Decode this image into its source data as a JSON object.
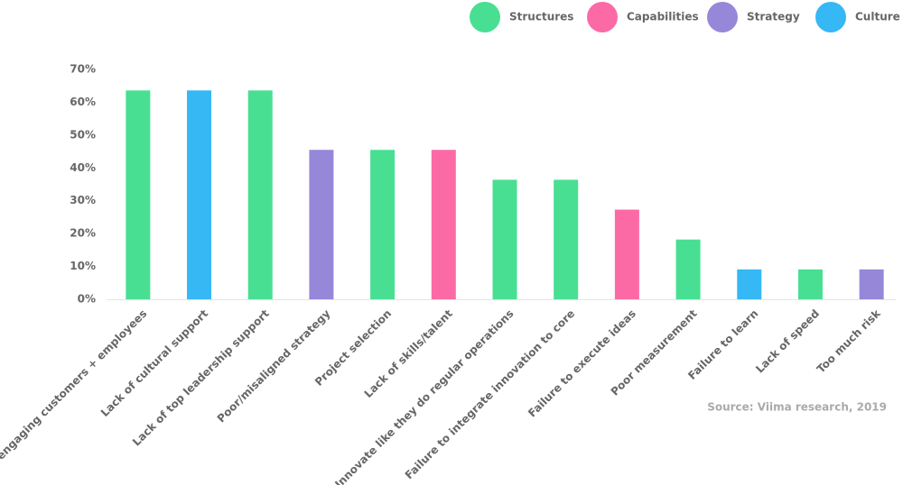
{
  "chart_data": {
    "type": "bar",
    "categories": [
      "Not engaging customers + employees",
      "Lack of cultural support",
      "Lack of top leadership support",
      "Poor/misaligned strategy",
      "Project selection",
      "Lack of skills/talent",
      "Innovate like they do regular operations",
      "Failure to integrate innovation to core",
      "Failure to execute ideas",
      "Poor measurement",
      "Failure to learn",
      "Lack of speed",
      "Too much risk"
    ],
    "series": [
      {
        "name": "Structures",
        "color": "#48df93",
        "values": [
          63.6,
          null,
          63.6,
          null,
          45.5,
          null,
          36.4,
          36.4,
          null,
          18.2,
          null,
          9.1,
          null
        ]
      },
      {
        "name": "Capabilities",
        "color": "#fc6aa5",
        "values": [
          null,
          null,
          null,
          null,
          null,
          45.5,
          null,
          null,
          27.3,
          null,
          null,
          null,
          null
        ]
      },
      {
        "name": "Strategy",
        "color": "#9687d9",
        "values": [
          null,
          null,
          null,
          45.5,
          null,
          null,
          null,
          null,
          null,
          null,
          null,
          null,
          9.1
        ]
      },
      {
        "name": "Culture",
        "color": "#35b8f4",
        "values": [
          null,
          63.6,
          null,
          null,
          null,
          null,
          null,
          null,
          null,
          null,
          9.1,
          null,
          null
        ]
      }
    ],
    "ylim": [
      0,
      70
    ],
    "yticks": [
      {
        "value": 0,
        "label": "0%"
      },
      {
        "value": 10,
        "label": "10%"
      },
      {
        "value": 20,
        "label": "20%"
      },
      {
        "value": 30,
        "label": "30%"
      },
      {
        "value": 40,
        "label": "40%"
      },
      {
        "value": 50,
        "label": "50%"
      },
      {
        "value": 60,
        "label": "60%"
      },
      {
        "value": 70,
        "label": "70%"
      }
    ],
    "grid": false,
    "legend": "top-right",
    "source": "Source: Viima research, 2019"
  }
}
